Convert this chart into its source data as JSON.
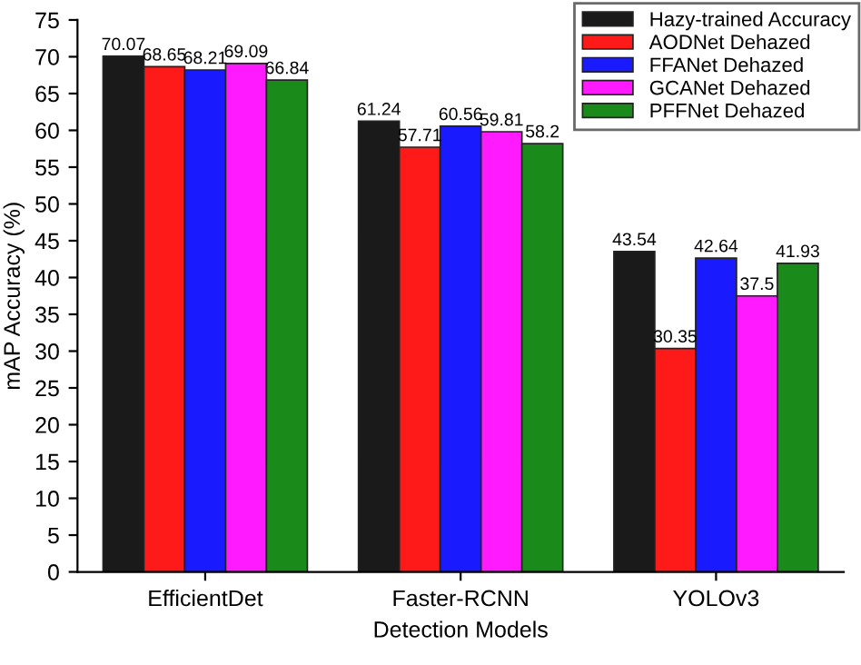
{
  "chart_data": {
    "type": "bar",
    "xlabel": "Detection Models",
    "ylabel": "mAP Accuracy (%)",
    "categories": [
      "EfficientDet",
      "Faster-RCNN",
      "YOLOv3"
    ],
    "series": [
      {
        "name": "Hazy-trained Accuracy",
        "color": "#1a1a1a",
        "values": [
          70.07,
          61.24,
          43.54
        ]
      },
      {
        "name": "AODNet Dehazed",
        "color": "#ff1a1a",
        "values": [
          68.65,
          57.71,
          30.35
        ]
      },
      {
        "name": "FFANet Dehazed",
        "color": "#1a1aff",
        "values": [
          68.21,
          60.56,
          42.64
        ]
      },
      {
        "name": "GCANet Dehazed",
        "color": "#ff1aff",
        "values": [
          69.09,
          59.81,
          37.5
        ]
      },
      {
        "name": "PFFNet Dehazed",
        "color": "#1a8a1a",
        "values": [
          66.84,
          58.2,
          41.93
        ]
      }
    ],
    "data_labels": true,
    "ylim": [
      0,
      75
    ],
    "yticks": [
      0,
      5,
      10,
      15,
      20,
      25,
      30,
      35,
      40,
      45,
      50,
      55,
      60,
      65,
      70,
      75
    ],
    "grid": false,
    "legend": "top right"
  }
}
